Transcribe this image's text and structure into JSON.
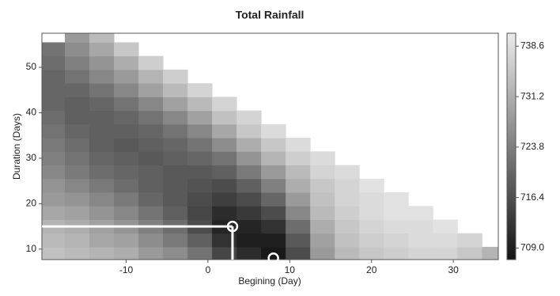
{
  "chart_data": {
    "type": "heatmap",
    "title": "Total Rainfall",
    "x_label": "Begining (Day)",
    "y_label": "Duration (Days)",
    "x": [
      -19,
      -16,
      -13,
      -10,
      -7,
      -4,
      -1,
      2,
      5,
      8,
      11,
      14,
      17,
      20,
      23,
      26,
      29,
      32,
      35
    ],
    "y": [
      9,
      12,
      15,
      18,
      21,
      24,
      27,
      30,
      33,
      36,
      39,
      42,
      45,
      48,
      51,
      54,
      57
    ],
    "z": [
      [
        734,
        733,
        732,
        731,
        728,
        726,
        722,
        715,
        711,
        708,
        716,
        728,
        733,
        735,
        736,
        737,
        737,
        735,
        732
      ],
      [
        733,
        732,
        730,
        729,
        726,
        723,
        719,
        712,
        709,
        709,
        718,
        729,
        734,
        736,
        737,
        738,
        738,
        737,
        null
      ],
      [
        732,
        731,
        729,
        727,
        724,
        721,
        716,
        710,
        710,
        712,
        721,
        731,
        735,
        737,
        738,
        738,
        739,
        null,
        null
      ],
      [
        730,
        729,
        727,
        725,
        722,
        719,
        715,
        711,
        713,
        716,
        725,
        733,
        736,
        738,
        739,
        739,
        null,
        null,
        null
      ],
      [
        728,
        727,
        725,
        723,
        720,
        718,
        716,
        714,
        716,
        720,
        728,
        734,
        737,
        738,
        739,
        null,
        null,
        null,
        null
      ],
      [
        727,
        725,
        723,
        721,
        719,
        718,
        717,
        716,
        719,
        724,
        731,
        735,
        737,
        739,
        null,
        null,
        null,
        null,
        null
      ],
      [
        725,
        723,
        721,
        720,
        719,
        718,
        718,
        719,
        723,
        728,
        733,
        737,
        738,
        null,
        null,
        null,
        null,
        null,
        null
      ],
      [
        724,
        722,
        720,
        719,
        718,
        719,
        720,
        722,
        727,
        732,
        736,
        738,
        null,
        null,
        null,
        null,
        null,
        null,
        null
      ],
      [
        723,
        721,
        719,
        718,
        719,
        720,
        722,
        726,
        731,
        735,
        738,
        null,
        null,
        null,
        null,
        null,
        null,
        null,
        null
      ],
      [
        722,
        720,
        719,
        719,
        720,
        722,
        725,
        730,
        735,
        738,
        null,
        null,
        null,
        null,
        null,
        null,
        null,
        null,
        null
      ],
      [
        721,
        719,
        719,
        720,
        722,
        725,
        729,
        734,
        737,
        null,
        null,
        null,
        null,
        null,
        null,
        null,
        null,
        null,
        null
      ],
      [
        720,
        719,
        720,
        722,
        725,
        729,
        733,
        737,
        null,
        null,
        null,
        null,
        null,
        null,
        null,
        null,
        null,
        null,
        null
      ],
      [
        720,
        720,
        722,
        725,
        729,
        733,
        737,
        null,
        null,
        null,
        null,
        null,
        null,
        null,
        null,
        null,
        null,
        null,
        null
      ],
      [
        720,
        722,
        725,
        728,
        732,
        736,
        null,
        null,
        null,
        null,
        null,
        null,
        null,
        null,
        null,
        null,
        null,
        null,
        null
      ],
      [
        721,
        724,
        727,
        731,
        736,
        null,
        null,
        null,
        null,
        null,
        null,
        null,
        null,
        null,
        null,
        null,
        null,
        null,
        null
      ],
      [
        722,
        726,
        730,
        735,
        null,
        null,
        null,
        null,
        null,
        null,
        null,
        null,
        null,
        null,
        null,
        null,
        null,
        null,
        null
      ],
      [
        null,
        728,
        733,
        null,
        null,
        null,
        null,
        null,
        null,
        null,
        null,
        null,
        null,
        null,
        null,
        null,
        null,
        null,
        null
      ]
    ],
    "xlim": [
      -20.3,
      35.5
    ],
    "xticks": [
      -10,
      0,
      10,
      20,
      30
    ],
    "ylim": [
      7.7,
      57.5
    ],
    "yticks": [
      10,
      20,
      30,
      40,
      50
    ],
    "clim": [
      707.3,
      740.5
    ],
    "cticks": [
      {
        "value": 709,
        "label": "709.0"
      },
      {
        "value": 716.4,
        "label": "716.4"
      },
      {
        "value": 723.8,
        "label": "723.8"
      },
      {
        "value": 731.2,
        "label": "731.2"
      },
      {
        "value": 738.6,
        "label": "738.6"
      }
    ],
    "markers": {
      "x": [
        3,
        8
      ],
      "y": [
        15,
        8
      ]
    }
  }
}
